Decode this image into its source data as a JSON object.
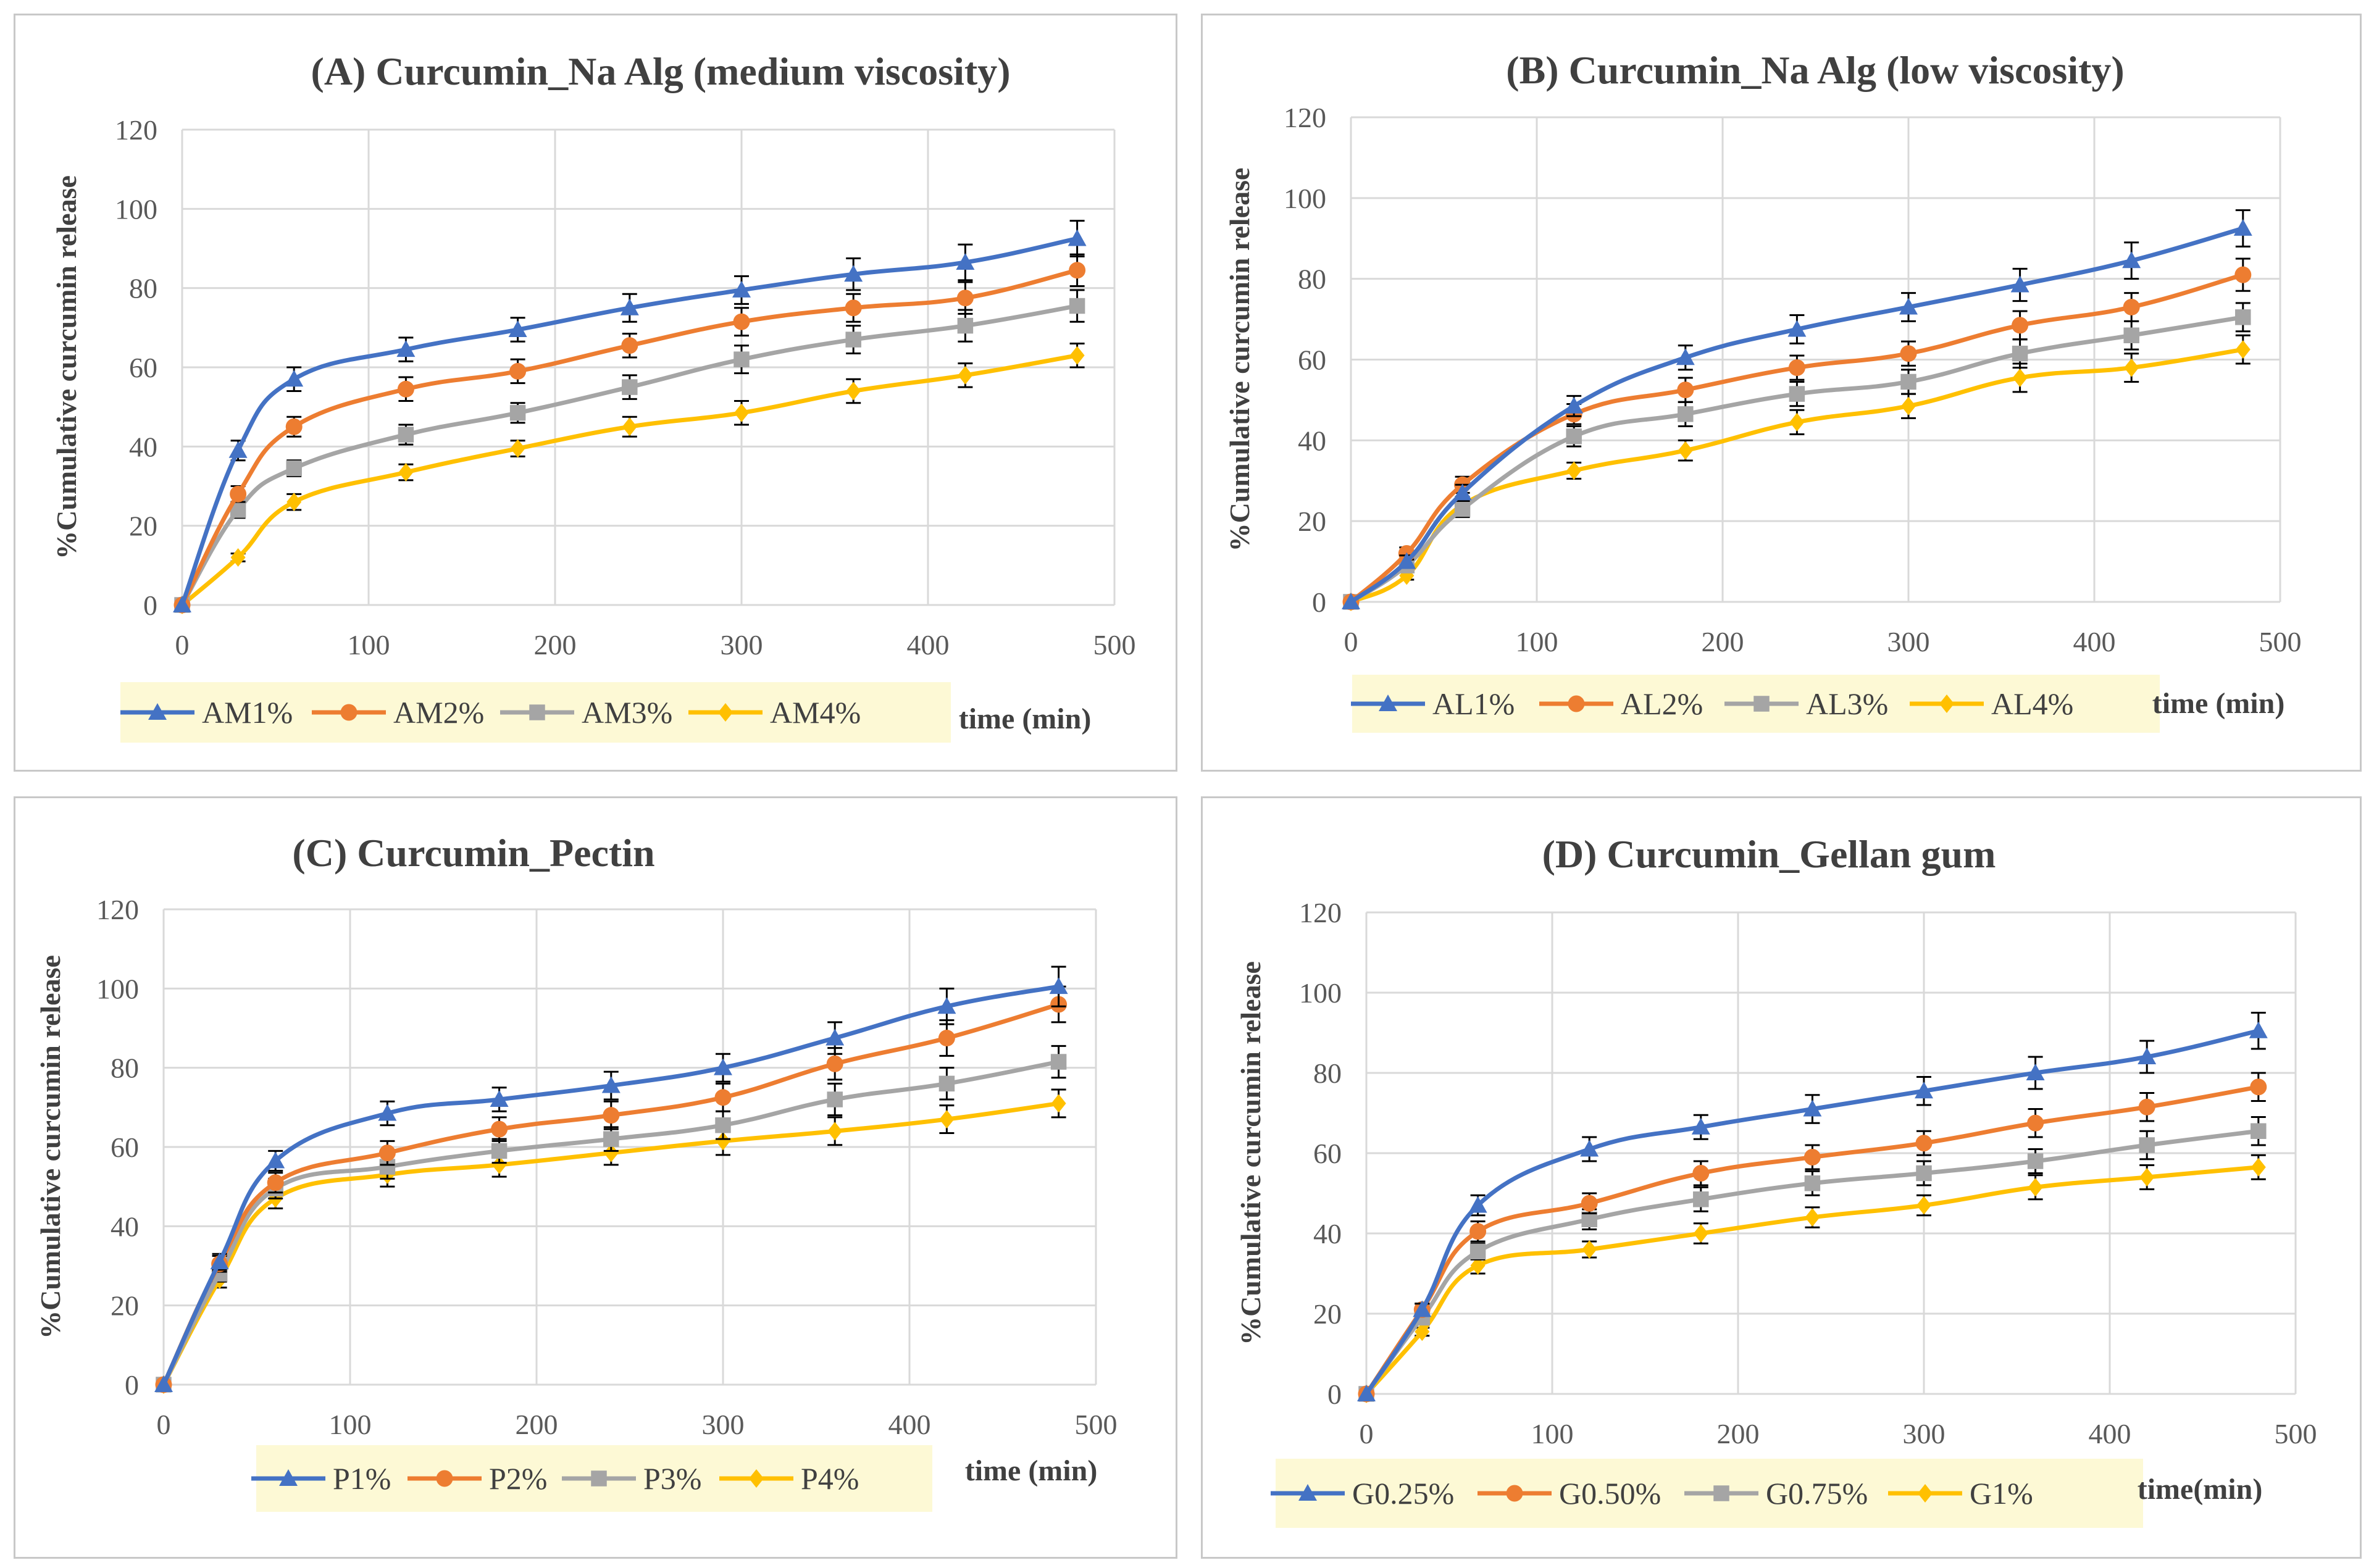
{
  "chart_data": [
    {
      "type": "line",
      "title": "(A) Curcumin_Na Alg (medium viscosity)",
      "xlabel": "time (min)",
      "ylabel": "%Cumulative curcumin release",
      "xlim": [
        0,
        500
      ],
      "ylim": [
        0,
        120
      ],
      "xticks": [
        "0",
        "100",
        "200",
        "300",
        "400",
        "500"
      ],
      "yticks": [
        "0",
        "20",
        "40",
        "60",
        "80",
        "100",
        "120"
      ],
      "x": [
        0,
        30,
        60,
        120,
        180,
        240,
        300,
        360,
        420,
        480
      ],
      "series": [
        {
          "name": "AM1%",
          "color": "#4472c4",
          "marker": "triangle",
          "values": [
            0,
            39,
            57,
            64.5,
            69.5,
            75,
            79.5,
            83.5,
            86.5,
            92.5
          ],
          "errors": [
            0,
            2.5,
            3,
            3,
            3,
            3.5,
            3.5,
            4,
            4.5,
            4.5
          ]
        },
        {
          "name": "AM2%",
          "color": "#ed7d31",
          "marker": "circle",
          "values": [
            0,
            28,
            45,
            54.5,
            59,
            65.5,
            71.5,
            75,
            77.5,
            84.5
          ],
          "errors": [
            0,
            2,
            2.5,
            3,
            3,
            3,
            3.5,
            3.5,
            4,
            4
          ]
        },
        {
          "name": "AM3%",
          "color": "#a5a5a5",
          "marker": "square",
          "values": [
            0,
            24,
            34.5,
            43,
            48.5,
            55,
            62,
            67,
            70.5,
            75.5
          ],
          "errors": [
            0,
            2,
            2,
            2.5,
            2.5,
            3,
            3.5,
            3.5,
            4,
            4
          ]
        },
        {
          "name": "AM4%",
          "color": "#ffc000",
          "marker": "diamond",
          "values": [
            0,
            12,
            26,
            33.5,
            39.5,
            45,
            48.5,
            54,
            58,
            63
          ],
          "errors": [
            0,
            1,
            2,
            2,
            2,
            2.5,
            3,
            3,
            3,
            3
          ]
        }
      ]
    },
    {
      "type": "line",
      "title": "(B) Curcumin_Na Alg (low viscosity)",
      "xlabel": "time (min)",
      "ylabel": "%Cumulative curcumin release",
      "xlim": [
        0,
        500
      ],
      "ylim": [
        0,
        120
      ],
      "xticks": [
        "0",
        "100",
        "200",
        "300",
        "400",
        "500"
      ],
      "yticks": [
        "0",
        "20",
        "40",
        "60",
        "80",
        "100",
        "120"
      ],
      "x": [
        0,
        30,
        60,
        120,
        180,
        240,
        300,
        360,
        420,
        480
      ],
      "series": [
        {
          "name": "AL1%",
          "color": "#4472c4",
          "marker": "triangle",
          "values": [
            0,
            10,
            27,
            48.5,
            60.5,
            67.5,
            73,
            78.5,
            84.5,
            92.5
          ],
          "errors": [
            0,
            1.5,
            2,
            2.5,
            3,
            3.5,
            3.5,
            4,
            4.5,
            4.5
          ]
        },
        {
          "name": "AL2%",
          "color": "#ed7d31",
          "marker": "circle",
          "values": [
            0,
            12,
            29,
            46.5,
            52.5,
            58,
            61.5,
            68.5,
            73,
            81
          ],
          "errors": [
            0,
            1.5,
            2,
            2.5,
            3,
            3,
            3,
            3.5,
            3.5,
            4
          ]
        },
        {
          "name": "AL3%",
          "color": "#a5a5a5",
          "marker": "square",
          "values": [
            0,
            9,
            23,
            41,
            46.5,
            51.5,
            54.5,
            61.5,
            66,
            70.5
          ],
          "errors": [
            0,
            1.5,
            2,
            2.5,
            3,
            3,
            3,
            3.5,
            3.5,
            3.5
          ]
        },
        {
          "name": "AL4%",
          "color": "#ffc000",
          "marker": "diamond",
          "values": [
            0,
            6.5,
            24,
            32.5,
            37.5,
            44.5,
            48.5,
            55.5,
            58,
            62.5
          ],
          "errors": [
            0,
            1,
            2,
            2,
            2.5,
            3,
            3,
            3.5,
            3.5,
            3.5
          ]
        }
      ]
    },
    {
      "type": "line",
      "title": "(C) Curcumin_Pectin",
      "xlabel": "time (min)",
      "ylabel": "%Cumulative curcumin release",
      "xlim": [
        0,
        500
      ],
      "ylim": [
        0,
        120
      ],
      "xticks": [
        "0",
        "100",
        "200",
        "300",
        "400",
        "500"
      ],
      "yticks": [
        "0",
        "20",
        "40",
        "60",
        "80",
        "100",
        "120"
      ],
      "x": [
        0,
        30,
        60,
        120,
        180,
        240,
        300,
        360,
        420,
        480
      ],
      "series": [
        {
          "name": "P1%",
          "color": "#4472c4",
          "marker": "triangle",
          "values": [
            0,
            31,
            56.5,
            68.5,
            72,
            75.5,
            80,
            87.5,
            95.5,
            100.5
          ],
          "errors": [
            0,
            2,
            2.5,
            3,
            3,
            3.5,
            3.5,
            4,
            4.5,
            5
          ]
        },
        {
          "name": "P2%",
          "color": "#ed7d31",
          "marker": "circle",
          "values": [
            0,
            30.5,
            51,
            58.5,
            64.5,
            68,
            72.5,
            81,
            87.5,
            96
          ],
          "errors": [
            0,
            2,
            2.5,
            3,
            3,
            3.5,
            3.5,
            4,
            4.5,
            4.5
          ]
        },
        {
          "name": "P3%",
          "color": "#a5a5a5",
          "marker": "square",
          "values": [
            0,
            28,
            49.5,
            55,
            59,
            62,
            65.5,
            72,
            76,
            81.5
          ],
          "errors": [
            0,
            2,
            2.5,
            3,
            3,
            3,
            3.5,
            4,
            4,
            4
          ]
        },
        {
          "name": "P4%",
          "color": "#ffc000",
          "marker": "diamond",
          "values": [
            0,
            26.5,
            47,
            53,
            55.5,
            58.5,
            61.5,
            64,
            67,
            71
          ],
          "errors": [
            0,
            2,
            2.5,
            3,
            3,
            3,
            3.5,
            3.5,
            3.5,
            3.5
          ]
        }
      ]
    },
    {
      "type": "line",
      "title": "(D) Curcumin_Gellan gum",
      "xlabel": "time(min)",
      "ylabel": "%Cumulative curcumin release",
      "xlim": [
        0,
        500
      ],
      "ylim": [
        0,
        120
      ],
      "xticks": [
        "0",
        "100",
        "200",
        "300",
        "400",
        "500"
      ],
      "yticks": [
        "0",
        "20",
        "40",
        "60",
        "80",
        "100",
        "120"
      ],
      "x": [
        0,
        30,
        60,
        120,
        180,
        240,
        300,
        360,
        420,
        480
      ],
      "series": [
        {
          "name": "G0.25%",
          "color": "#4472c4",
          "marker": "triangle",
          "values": [
            0,
            21,
            47,
            61,
            66.5,
            71,
            75.5,
            80,
            84,
            90.5
          ],
          "errors": [
            0,
            1.5,
            2.5,
            3,
            3,
            3.5,
            3.5,
            4,
            4,
            4.5
          ]
        },
        {
          "name": "G0.50%",
          "color": "#ed7d31",
          "marker": "circle",
          "values": [
            0,
            21,
            40.5,
            47.5,
            55,
            59,
            62.5,
            67.5,
            71.5,
            76.5
          ],
          "errors": [
            0,
            1.5,
            2.5,
            2.5,
            3,
            3,
            3,
            3.5,
            3.5,
            3.5
          ]
        },
        {
          "name": "G0.75%",
          "color": "#a5a5a5",
          "marker": "square",
          "values": [
            0,
            19,
            35.5,
            43.5,
            48.5,
            52.5,
            55,
            58,
            62,
            65.5
          ],
          "errors": [
            0,
            1.5,
            2,
            2.5,
            3,
            3,
            3,
            3,
            3.5,
            3.5
          ]
        },
        {
          "name": "G1%",
          "color": "#ffc000",
          "marker": "diamond",
          "values": [
            0,
            15.5,
            32,
            36,
            40,
            44,
            47,
            51.5,
            54,
            56.5
          ],
          "errors": [
            0,
            1,
            2,
            2,
            2.5,
            2.5,
            2.5,
            3,
            3,
            3
          ]
        }
      ]
    }
  ]
}
